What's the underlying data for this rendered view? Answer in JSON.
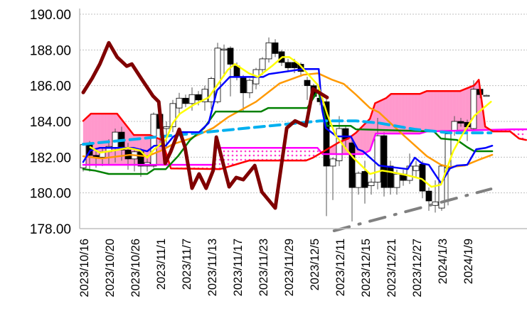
{
  "chart_data": {
    "type": "candlestick",
    "ylim": [
      178,
      190
    ],
    "y_ticks": [
      "178.00",
      "180.00",
      "182.00",
      "184.00",
      "186.00",
      "188.00",
      "190.00"
    ],
    "grid": "horizontal dotted",
    "x_tick_every": 4,
    "candles": [
      [
        "2023/10/16",
        181.4,
        182.8,
        181.2,
        182.7
      ],
      [
        "2023/10/17",
        182.7,
        182.9,
        181.2,
        182.1
      ],
      [
        "2023/10/18",
        182.1,
        182.4,
        181.4,
        182.0
      ],
      [
        "2023/10/19",
        182.0,
        182.5,
        181.5,
        182.3
      ],
      [
        "2023/10/20",
        182.3,
        183.0,
        181.6,
        182.6
      ],
      [
        "2023/10/23",
        182.5,
        183.6,
        181.7,
        183.4
      ],
      [
        "2023/10/24",
        183.4,
        183.7,
        181.8,
        182.4
      ],
      [
        "2023/10/25",
        182.4,
        182.8,
        181.3,
        181.9
      ],
      [
        "2023/10/26",
        181.9,
        182.4,
        181.2,
        182.3
      ],
      [
        "2023/10/27",
        182.3,
        182.5,
        180.9,
        181.5
      ],
      [
        "2023/10/30",
        181.5,
        182.0,
        181.2,
        181.7
      ],
      [
        "2023/10/31",
        181.5,
        184.5,
        181.4,
        184.4
      ],
      [
        "2023/11/1",
        184.4,
        184.5,
        182.8,
        183.6
      ],
      [
        "2023/11/2",
        183.6,
        184.0,
        182.5,
        183.7
      ],
      [
        "2023/11/3",
        183.7,
        185.2,
        183.4,
        185.0
      ],
      [
        "2023/11/6",
        184.75,
        185.6,
        184.4,
        185.3
      ],
      [
        "2023/11/7",
        185.3,
        185.5,
        184.8,
        185.0
      ],
      [
        "2023/11/8",
        185.0,
        185.9,
        184.6,
        185.5
      ],
      [
        "2023/11/9",
        185.5,
        185.7,
        184.9,
        185.2
      ],
      [
        "2023/11/10",
        185.1,
        186.0,
        184.6,
        185.8
      ],
      [
        "2023/11/13",
        185.1,
        186.5,
        184.7,
        186.4
      ],
      [
        "2023/11/14",
        185.1,
        188.4,
        185.0,
        188.1
      ],
      [
        "2023/11/15",
        188.0,
        188.3,
        186.5,
        188.05
      ],
      [
        "2023/11/16",
        188.1,
        188.2,
        185.4,
        187.2
      ],
      [
        "2023/11/17",
        187.1,
        187.3,
        186.3,
        186.5
      ],
      [
        "2023/11/20",
        186.5,
        186.6,
        184.6,
        185.6
      ],
      [
        "2023/11/21",
        185.6,
        186.4,
        185.3,
        186.3
      ],
      [
        "2023/11/22",
        186.1,
        187.0,
        185.8,
        186.9
      ],
      [
        "2023/11/23",
        186.9,
        187.6,
        186.6,
        187.5
      ],
      [
        "2023/11/24",
        187.5,
        188.7,
        187.3,
        188.4
      ],
      [
        "2023/11/27",
        188.4,
        188.6,
        187.6,
        187.8
      ],
      [
        "2023/11/28",
        187.9,
        188.0,
        187.1,
        187.3
      ],
      [
        "2023/11/29",
        187.3,
        187.5,
        186.8,
        187.0
      ],
      [
        "2023/11/30",
        187.3,
        187.5,
        186.7,
        187.0
      ],
      [
        "2023/12/1",
        187.2,
        187.3,
        186.5,
        186.8
      ],
      [
        "2023/12/4",
        186.3,
        186.5,
        185.2,
        186.0
      ],
      [
        "2023/12/5",
        186.0,
        186.1,
        185.3,
        185.4
      ],
      [
        "2023/12/6",
        185.3,
        185.6,
        184.9,
        185.1
      ],
      [
        "2023/12/7",
        185.1,
        185.3,
        178.7,
        181.5
      ],
      [
        "2023/12/8",
        181.5,
        182.0,
        179.6,
        181.9
      ],
      [
        "2023/12/11",
        181.8,
        184.3,
        181.5,
        183.6
      ],
      [
        "2023/12/12",
        183.6,
        183.7,
        182.4,
        183.0
      ],
      [
        "2023/12/13",
        182.8,
        183.0,
        178.4,
        180.3
      ],
      [
        "2023/12/14",
        180.3,
        181.2,
        179.9,
        181.1
      ],
      [
        "2023/12/15",
        181.2,
        181.8,
        179.4,
        180.3
      ],
      [
        "2023/12/18",
        180.4,
        180.8,
        179.9,
        180.6
      ],
      [
        "2023/12/19",
        180.6,
        184.2,
        180.2,
        183.2
      ],
      [
        "2023/12/20",
        183.2,
        183.4,
        179.8,
        180.3
      ],
      [
        "2023/12/21",
        181.5,
        181.8,
        179.9,
        180.3
      ],
      [
        "2023/12/22",
        180.3,
        181.3,
        179.9,
        181.05
      ],
      [
        "2023/12/25",
        181.05,
        181.3,
        180.4,
        180.7
      ],
      [
        "2023/12/26",
        180.7,
        182.2,
        180.5,
        181.5
      ],
      [
        "2023/12/27",
        181.25,
        181.8,
        180.9,
        181.5
      ],
      [
        "2023/12/28",
        181.6,
        181.8,
        179.7,
        180.1
      ],
      [
        "2023/12/29",
        180.1,
        180.3,
        179.0,
        179.55
      ],
      [
        "2024/1/2",
        179.3,
        180.7,
        178.9,
        179.5
      ],
      [
        "2024/1/3",
        179.15,
        181.6,
        179.0,
        181.5
      ],
      [
        "2024/1/4",
        181.4,
        183.4,
        179.3,
        183.3
      ],
      [
        "2024/1/5",
        183.5,
        184.3,
        183.2,
        184.0
      ],
      [
        "2024/1/8",
        184.0,
        184.2,
        183.7,
        183.9
      ],
      [
        "2024/1/9",
        183.95,
        184.1,
        182.9,
        183.7
      ],
      [
        "2024/1/10",
        183.6,
        186.3,
        183.5,
        185.8
      ],
      [
        "2024/1/11",
        185.8,
        185.9,
        185.3,
        185.5
      ],
      [
        "2024/1/12",
        185.46,
        185.5,
        185.4,
        185.46
      ]
    ],
    "cloud": {
      "fill_color": "#ff99cc",
      "twist_fill": "#ff66dd dotted",
      "upper_line": {
        "color": "#ff0000",
        "points": [
          [
            0,
            184.03
          ],
          [
            1.2,
            184.43
          ],
          [
            5.3,
            184.43
          ],
          [
            7.9,
            183.24
          ],
          [
            10.4,
            183.24
          ],
          [
            12.3,
            182.96
          ],
          [
            13.7,
            181.37
          ],
          [
            21.4,
            181.33
          ],
          [
            25.9,
            181.81
          ],
          [
            34.8,
            181.81
          ],
          [
            35.9,
            181.97
          ],
          [
            40,
            182.84
          ],
          [
            41.4,
            183.04
          ],
          [
            42.6,
            183.36
          ],
          [
            44.8,
            184.15
          ],
          [
            45.6,
            185.02
          ],
          [
            47.3,
            185.3
          ],
          [
            48.1,
            185.54
          ],
          [
            52.6,
            185.54
          ],
          [
            53.7,
            185.7
          ],
          [
            58.9,
            185.7
          ],
          [
            61.1,
            186.02
          ],
          [
            61.8,
            186.33
          ],
          [
            62.8,
            183.71
          ],
          [
            64,
            183.44
          ],
          [
            66.7,
            183.44
          ],
          [
            68.1,
            183.04
          ],
          [
            69.2,
            182.96
          ]
        ]
      },
      "lower_line": {
        "color": "#ff00ff",
        "points": [
          [
            0,
            181.57
          ],
          [
            20.3,
            181.57
          ],
          [
            20.8,
            182.52
          ],
          [
            36.6,
            182.52
          ],
          [
            37.4,
            182.17
          ],
          [
            43.7,
            182.17
          ],
          [
            44.8,
            182.37
          ],
          [
            45.7,
            183.32
          ],
          [
            52.6,
            183.32
          ],
          [
            53.7,
            183.44
          ],
          [
            67,
            183.56
          ],
          [
            69.3,
            183.56
          ]
        ]
      }
    },
    "lines": [
      {
        "color": "#ff9900",
        "style": "solid",
        "weight": "medium",
        "points": [
          [
            0,
            182.05
          ],
          [
            2.9,
            181.93
          ],
          [
            7.3,
            182.13
          ],
          [
            10,
            182.05
          ],
          [
            12.2,
            182.37
          ],
          [
            14,
            182.72
          ],
          [
            16.7,
            183.04
          ],
          [
            20.3,
            183.63
          ],
          [
            22.6,
            184.23
          ],
          [
            24,
            184.51
          ],
          [
            27,
            185.1
          ],
          [
            30.7,
            186.13
          ],
          [
            34.4,
            186.61
          ],
          [
            36.7,
            186.69
          ],
          [
            38.9,
            186.33
          ],
          [
            40.7,
            186.1
          ],
          [
            42.6,
            185.5
          ],
          [
            44.8,
            184.75
          ],
          [
            46.2,
            184.51
          ],
          [
            50,
            183.24
          ],
          [
            53.7,
            182.05
          ],
          [
            55.9,
            181.57
          ],
          [
            57.3,
            181.45
          ],
          [
            59.6,
            181.53
          ],
          [
            61.8,
            181.85
          ],
          [
            63.9,
            182.13
          ]
        ]
      },
      {
        "color": "#008000",
        "style": "solid",
        "weight": "medium",
        "points": [
          [
            0,
            181.33
          ],
          [
            1.8,
            181.25
          ],
          [
            4,
            181.06
          ],
          [
            10,
            181.06
          ],
          [
            11.1,
            181.33
          ],
          [
            12.9,
            181.33
          ],
          [
            14.8,
            182.05
          ],
          [
            16.7,
            182.96
          ],
          [
            18.9,
            183.63
          ],
          [
            20.7,
            184.55
          ],
          [
            27.8,
            184.55
          ],
          [
            28.9,
            184.75
          ],
          [
            35,
            184.75
          ],
          [
            36.7,
            185.74
          ],
          [
            38.1,
            183.75
          ],
          [
            41.8,
            183.75
          ],
          [
            42.6,
            183.56
          ],
          [
            54.8,
            183.44
          ],
          [
            55.9,
            183.04
          ],
          [
            58.4,
            182.96
          ],
          [
            60,
            182.56
          ],
          [
            61.1,
            182.33
          ],
          [
            63.9,
            182.33
          ]
        ]
      },
      {
        "color": "#00b0f0",
        "style": "dashed",
        "weight": "thick",
        "points": [
          [
            0,
            182.72
          ],
          [
            37,
            184.03
          ],
          [
            42.6,
            184.03
          ],
          [
            46.2,
            183.91
          ],
          [
            51.8,
            183.56
          ],
          [
            57.3,
            183.36
          ],
          [
            63.7,
            183.36
          ]
        ]
      },
      {
        "color": "#0000ff",
        "style": "solid",
        "weight": "medium",
        "points": [
          [
            0,
            181.73
          ],
          [
            1.1,
            182.37
          ],
          [
            2.6,
            182.52
          ],
          [
            7.8,
            182.52
          ],
          [
            10,
            182.33
          ],
          [
            11.1,
            182.64
          ],
          [
            12.9,
            182.64
          ],
          [
            14,
            183.12
          ],
          [
            15.1,
            183.4
          ],
          [
            18.1,
            183.4
          ],
          [
            19.6,
            183.91
          ],
          [
            20.9,
            185.74
          ],
          [
            22.9,
            186.49
          ],
          [
            28.1,
            186.49
          ],
          [
            29,
            186.65
          ],
          [
            34.4,
            186.93
          ],
          [
            36.8,
            186.93
          ],
          [
            37.3,
            184.71
          ],
          [
            37.9,
            183.63
          ],
          [
            39.6,
            183.16
          ],
          [
            41.8,
            183.16
          ],
          [
            42.9,
            182.44
          ],
          [
            43.7,
            182.33
          ],
          [
            46.2,
            181.53
          ],
          [
            50.7,
            181.33
          ],
          [
            51.8,
            181.97
          ],
          [
            52.9,
            181.65
          ],
          [
            54,
            181.57
          ],
          [
            55.9,
            180.54
          ],
          [
            57.3,
            181.37
          ],
          [
            58.4,
            181.53
          ],
          [
            60,
            181.57
          ],
          [
            61.4,
            182.44
          ],
          [
            62.9,
            182.52
          ],
          [
            63.9,
            182.64
          ]
        ]
      },
      {
        "color": "#ffff00",
        "style": "solid",
        "weight": "medium",
        "points": [
          [
            1.1,
            182.56
          ],
          [
            2.6,
            182.25
          ],
          [
            4.8,
            182.37
          ],
          [
            7,
            182.52
          ],
          [
            8.9,
            182.37
          ],
          [
            10,
            181.97
          ],
          [
            11.1,
            182.44
          ],
          [
            12.9,
            182.96
          ],
          [
            14,
            183.91
          ],
          [
            15.1,
            184.43
          ],
          [
            17.3,
            184.94
          ],
          [
            19.6,
            185.34
          ],
          [
            22.6,
            186.89
          ],
          [
            23.7,
            187.21
          ],
          [
            25.9,
            186.69
          ],
          [
            27.3,
            186.49
          ],
          [
            29.6,
            187.13
          ],
          [
            31.1,
            187.6
          ],
          [
            32.2,
            187.6
          ],
          [
            33.7,
            187.21
          ],
          [
            36.7,
            186.02
          ],
          [
            38.1,
            184.43
          ],
          [
            39.4,
            183.24
          ],
          [
            41.1,
            182.44
          ],
          [
            42.2,
            181.97
          ],
          [
            44.8,
            181.06
          ],
          [
            46.7,
            181.25
          ],
          [
            48.1,
            181.17
          ],
          [
            50.7,
            180.98
          ],
          [
            52.9,
            180.78
          ],
          [
            54.4,
            180.34
          ],
          [
            55.9,
            180.46
          ],
          [
            57.8,
            182.33
          ],
          [
            59.2,
            183.24
          ],
          [
            61.1,
            184.31
          ],
          [
            63.7,
            185.1
          ]
        ]
      },
      {
        "color": "#800000",
        "style": "solid",
        "weight": "heavy",
        "points": [
          [
            0,
            185.62
          ],
          [
            1.4,
            186.41
          ],
          [
            2.6,
            187.21
          ],
          [
            4,
            188.4
          ],
          [
            5.3,
            187.6
          ],
          [
            6.8,
            187.09
          ],
          [
            7.6,
            187.21
          ],
          [
            9.2,
            186.33
          ],
          [
            10.9,
            185.42
          ],
          [
            11.8,
            185.1
          ],
          [
            12.8,
            181.65
          ],
          [
            13.7,
            182.33
          ],
          [
            15,
            183.56
          ],
          [
            15.9,
            182.56
          ],
          [
            17,
            180.26
          ],
          [
            18.1,
            181.06
          ],
          [
            19.2,
            180.26
          ],
          [
            20.3,
            181.25
          ],
          [
            20.8,
            183.12
          ],
          [
            22.8,
            180.34
          ],
          [
            23.9,
            180.86
          ],
          [
            25,
            180.74
          ],
          [
            26.8,
            181.53
          ],
          [
            27.9,
            180.06
          ],
          [
            30,
            179.15
          ],
          [
            31.8,
            183.63
          ],
          [
            33.1,
            184.03
          ],
          [
            34.8,
            183.75
          ],
          [
            35.9,
            185.82
          ],
          [
            38.1,
            185.34
          ]
        ]
      },
      {
        "color": "#808080",
        "style": "dash-dot",
        "weight": "thick",
        "points": [
          [
            39.2,
            177.88
          ],
          [
            63.7,
            180.22
          ]
        ]
      }
    ]
  }
}
